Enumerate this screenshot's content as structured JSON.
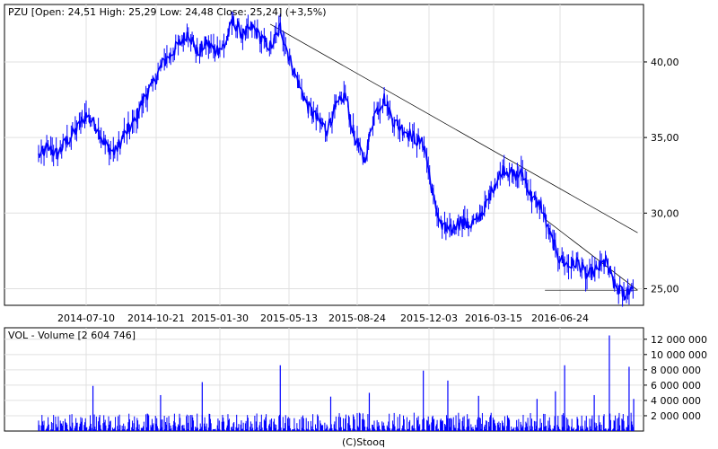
{
  "chart_data": [
    {
      "type": "line",
      "title": "PZU [Open: 24,51  High: 25,29  Low: 24,48  Close: 25,24] (+3,5%)",
      "x_ticks": [
        "2014-07-10",
        "2014-10-21",
        "2015-01-30",
        "2015-05-13",
        "2015-08-24",
        "2015-12-03",
        "2016-03-15",
        "2016-06-24"
      ],
      "y_ticks": [
        "40,00",
        "35,00",
        "30,00",
        "25,00"
      ],
      "y_tick_values": [
        40,
        35,
        30,
        25
      ],
      "ylim": [
        23.9,
        43.8
      ],
      "grid": true,
      "series": [
        {
          "color": "#0000ff",
          "x": [
            "2014-05-01",
            "2014-05-15",
            "2014-05-29",
            "2014-06-12",
            "2014-06-26",
            "2014-07-10",
            "2014-07-24",
            "2014-08-07",
            "2014-08-21",
            "2014-09-04",
            "2014-09-18",
            "2014-10-02",
            "2014-10-16",
            "2014-10-30",
            "2014-11-13",
            "2014-11-27",
            "2014-12-11",
            "2014-12-25",
            "2015-01-08",
            "2015-01-22",
            "2015-02-05",
            "2015-02-19",
            "2015-03-05",
            "2015-03-19",
            "2015-04-02",
            "2015-04-16",
            "2015-04-30",
            "2015-05-14",
            "2015-05-28",
            "2015-06-11",
            "2015-06-25",
            "2015-07-09",
            "2015-07-23",
            "2015-08-06",
            "2015-08-20",
            "2015-09-03",
            "2015-09-17",
            "2015-10-01",
            "2015-10-15",
            "2015-10-29",
            "2015-11-12",
            "2015-11-26",
            "2015-12-10",
            "2015-12-24",
            "2016-01-07",
            "2016-01-21",
            "2016-02-04",
            "2016-02-18",
            "2016-03-03",
            "2016-03-17",
            "2016-03-31",
            "2016-04-14",
            "2016-04-28",
            "2016-05-12",
            "2016-05-26",
            "2016-06-09",
            "2016-06-23",
            "2016-07-07",
            "2016-07-21",
            "2016-08-04",
            "2016-08-18",
            "2016-09-01",
            "2016-09-15",
            "2016-09-29",
            "2016-10-13"
          ],
          "values": [
            33.8,
            34.3,
            33.9,
            34.8,
            35.5,
            36.5,
            35.8,
            34.5,
            34.0,
            35.2,
            36.0,
            37.5,
            38.5,
            39.8,
            40.5,
            41.2,
            42.0,
            40.6,
            41.3,
            40.8,
            41.0,
            42.7,
            41.8,
            42.3,
            41.5,
            41.0,
            42.3,
            40.2,
            38.5,
            37.0,
            36.2,
            35.5,
            37.0,
            37.8,
            35.0,
            33.5,
            36.5,
            37.6,
            36.0,
            35.5,
            35.0,
            34.5,
            31.0,
            29.0,
            28.8,
            29.5,
            29.2,
            29.5,
            30.5,
            32.0,
            33.0,
            32.5,
            32.6,
            31.0,
            30.5,
            28.5,
            27.0,
            26.5,
            26.8,
            25.8,
            26.2,
            26.8,
            25.2,
            24.6,
            25.24
          ]
        }
      ],
      "trend_lines": [
        {
          "from": [
            "2015-04-15",
            42.5
          ],
          "to": [
            "2016-10-20",
            28.7
          ]
        },
        {
          "from": [
            "2016-06-01",
            29.6
          ],
          "to": [
            "2016-10-20",
            24.9
          ]
        },
        {
          "from": [
            "2016-06-01",
            24.9
          ],
          "to": [
            "2016-10-20",
            24.9
          ]
        }
      ]
    },
    {
      "type": "bar",
      "title": "VOL - Volume [2 604 746]",
      "y_ticks": [
        "12 000 000",
        "10 000 000",
        "8 000 000",
        "6 000 000",
        "4 000 000",
        "2 000 000"
      ],
      "y_tick_values": [
        12000000,
        10000000,
        8000000,
        6000000,
        4000000,
        2000000
      ],
      "ylim": [
        0,
        13500000
      ],
      "grid": true,
      "color": "#0000ff",
      "typical_range": [
        200000,
        2400000
      ],
      "spikes": [
        {
          "x": "2014-07-20",
          "value": 5900000
        },
        {
          "x": "2014-10-28",
          "value": 4700000
        },
        {
          "x": "2015-01-02",
          "value": 6400000
        },
        {
          "x": "2015-04-30",
          "value": 8600000
        },
        {
          "x": "2015-07-15",
          "value": 4500000
        },
        {
          "x": "2015-09-10",
          "value": 5000000
        },
        {
          "x": "2015-11-25",
          "value": 7900000
        },
        {
          "x": "2016-01-02",
          "value": 6600000
        },
        {
          "x": "2016-02-20",
          "value": 4600000
        },
        {
          "x": "2016-05-20",
          "value": 4200000
        },
        {
          "x": "2016-06-17",
          "value": 5200000
        },
        {
          "x": "2016-07-01",
          "value": 8600000
        },
        {
          "x": "2016-08-15",
          "value": 4700000
        },
        {
          "x": "2016-09-07",
          "value": 12500000
        },
        {
          "x": "2016-10-07",
          "value": 8400000
        },
        {
          "x": "2016-10-14",
          "value": 4200000
        }
      ]
    }
  ],
  "footer": {
    "credit": "(C)Stooq"
  }
}
